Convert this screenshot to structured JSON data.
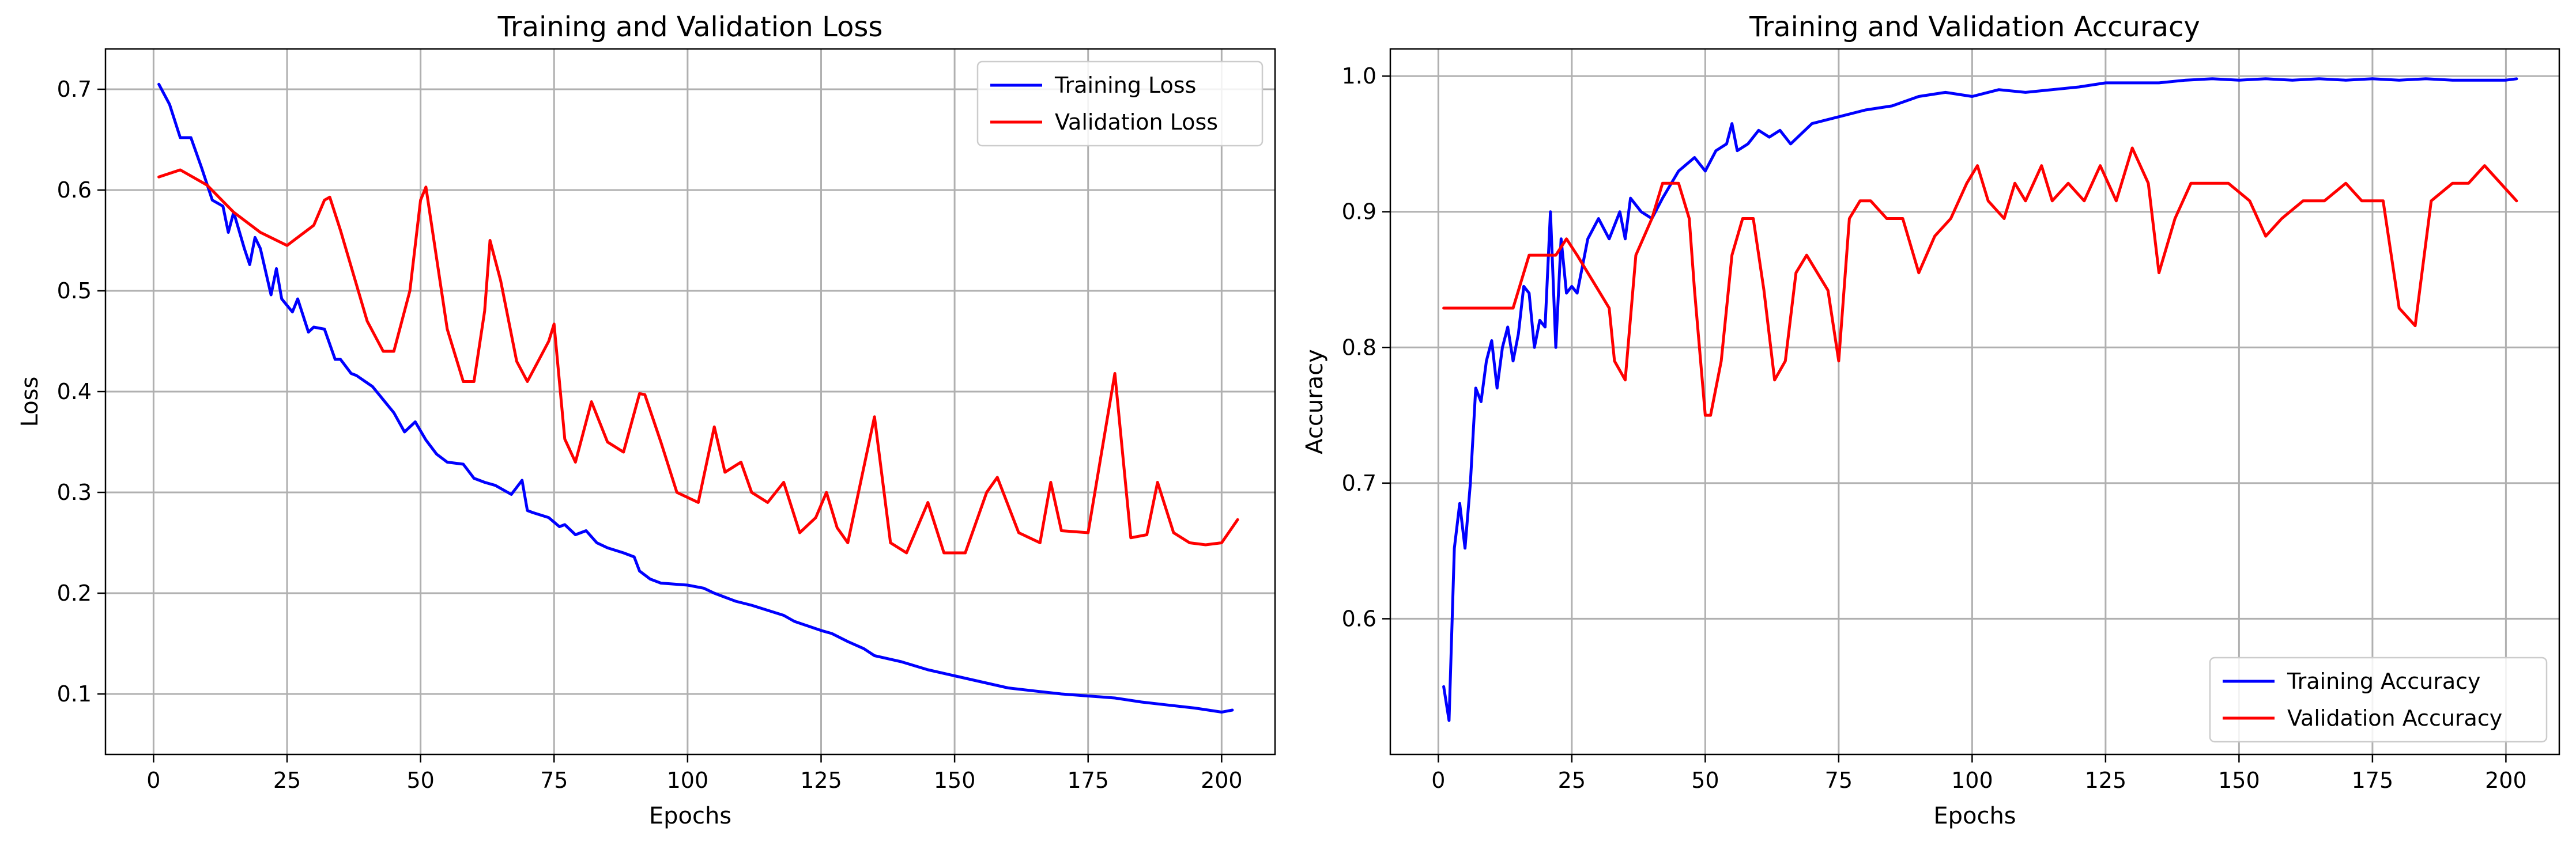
{
  "chart_data": [
    {
      "type": "line",
      "title": "Training and Validation Loss",
      "xlabel": "Epochs",
      "ylabel": "Loss",
      "xlim": [
        -9,
        210
      ],
      "ylim": [
        0.04,
        0.74
      ],
      "xticks": [
        0,
        25,
        50,
        75,
        100,
        125,
        150,
        175,
        200
      ],
      "yticks": [
        0.1,
        0.2,
        0.3,
        0.4,
        0.5,
        0.6,
        0.7
      ],
      "grid": true,
      "legend_position": "top-right",
      "series": [
        {
          "name": "Training Loss",
          "color": "#0000ff",
          "x": [
            1,
            3,
            5,
            7,
            9,
            11,
            13,
            14,
            15,
            17,
            18,
            19,
            20,
            22,
            23,
            24,
            26,
            27,
            29,
            30,
            32,
            34,
            35,
            37,
            38,
            41,
            43,
            45,
            47,
            49,
            51,
            53,
            55,
            58,
            60,
            62,
            64,
            67,
            69,
            70,
            71,
            74,
            76,
            77,
            79,
            81,
            83,
            85,
            88,
            90,
            91,
            93,
            95,
            100,
            103,
            105,
            107,
            109,
            112,
            115,
            118,
            120,
            125,
            127,
            130,
            133,
            135,
            140,
            145,
            150,
            155,
            160,
            165,
            170,
            175,
            180,
            185,
            190,
            195,
            200,
            201,
            202
          ],
          "y": [
            0.705,
            0.685,
            0.652,
            0.652,
            0.622,
            0.59,
            0.584,
            0.558,
            0.578,
            0.542,
            0.526,
            0.553,
            0.542,
            0.496,
            0.522,
            0.492,
            0.479,
            0.492,
            0.459,
            0.464,
            0.462,
            0.432,
            0.432,
            0.418,
            0.416,
            0.405,
            0.392,
            0.379,
            0.36,
            0.37,
            0.352,
            0.338,
            0.33,
            0.328,
            0.314,
            0.31,
            0.307,
            0.298,
            0.312,
            0.282,
            0.28,
            0.275,
            0.266,
            0.268,
            0.258,
            0.262,
            0.25,
            0.245,
            0.24,
            0.236,
            0.222,
            0.214,
            0.21,
            0.208,
            0.205,
            0.2,
            0.196,
            0.192,
            0.188,
            0.183,
            0.178,
            0.172,
            0.163,
            0.16,
            0.152,
            0.145,
            0.138,
            0.132,
            0.124,
            0.118,
            0.112,
            0.106,
            0.103,
            0.1,
            0.098,
            0.096,
            0.092,
            0.089,
            0.086,
            0.082,
            0.083,
            0.084
          ]
        },
        {
          "name": "Validation Loss",
          "color": "#ff0000",
          "x": [
            1,
            5,
            10,
            15,
            20,
            25,
            30,
            32,
            33,
            35,
            40,
            43,
            45,
            48,
            50,
            51,
            55,
            58,
            60,
            62,
            63,
            65,
            68,
            70,
            72,
            74,
            75,
            77,
            79,
            82,
            85,
            88,
            91,
            92,
            95,
            98,
            102,
            105,
            107,
            110,
            112,
            115,
            118,
            121,
            124,
            126,
            128,
            130,
            134,
            135,
            138,
            141,
            145,
            148,
            152,
            156,
            158,
            162,
            166,
            168,
            170,
            175,
            180,
            183,
            186,
            188,
            191,
            194,
            197,
            200,
            203
          ],
          "y": [
            0.613,
            0.62,
            0.605,
            0.578,
            0.558,
            0.545,
            0.565,
            0.59,
            0.593,
            0.56,
            0.47,
            0.44,
            0.44,
            0.5,
            0.59,
            0.603,
            0.462,
            0.41,
            0.41,
            0.48,
            0.55,
            0.51,
            0.43,
            0.41,
            0.43,
            0.45,
            0.467,
            0.353,
            0.33,
            0.39,
            0.35,
            0.34,
            0.398,
            0.397,
            0.35,
            0.3,
            0.29,
            0.365,
            0.32,
            0.33,
            0.3,
            0.29,
            0.31,
            0.26,
            0.275,
            0.3,
            0.265,
            0.25,
            0.35,
            0.375,
            0.25,
            0.24,
            0.29,
            0.24,
            0.24,
            0.3,
            0.315,
            0.26,
            0.25,
            0.31,
            0.262,
            0.26,
            0.418,
            0.255,
            0.258,
            0.31,
            0.26,
            0.25,
            0.248,
            0.25,
            0.273
          ]
        }
      ]
    },
    {
      "type": "line",
      "title": "Training and Validation Accuracy",
      "xlabel": "Epochs",
      "ylabel": "Accuracy",
      "xlim": [
        -9,
        210
      ],
      "ylim": [
        0.5,
        1.02
      ],
      "xticks": [
        0,
        25,
        50,
        75,
        100,
        125,
        150,
        175,
        200
      ],
      "yticks": [
        0.6,
        0.7,
        0.8,
        0.9,
        1.0
      ],
      "grid": true,
      "legend_position": "bottom-right",
      "series": [
        {
          "name": "Training Accuracy",
          "color": "#0000ff",
          "x": [
            1,
            2,
            3,
            4,
            5,
            6,
            7,
            8,
            9,
            10,
            11,
            12,
            13,
            14,
            15,
            16,
            17,
            18,
            19,
            20,
            21,
            22,
            23,
            24,
            25,
            26,
            27,
            28,
            30,
            32,
            34,
            35,
            36,
            38,
            40,
            42,
            45,
            48,
            50,
            52,
            54,
            55,
            56,
            58,
            60,
            62,
            64,
            66,
            70,
            75,
            80,
            85,
            90,
            95,
            100,
            105,
            110,
            115,
            120,
            125,
            130,
            135,
            140,
            145,
            150,
            155,
            160,
            165,
            170,
            175,
            180,
            185,
            190,
            195,
            200,
            202
          ],
          "y": [
            0.55,
            0.525,
            0.652,
            0.685,
            0.652,
            0.7,
            0.77,
            0.76,
            0.79,
            0.805,
            0.77,
            0.8,
            0.815,
            0.79,
            0.81,
            0.845,
            0.84,
            0.8,
            0.82,
            0.815,
            0.9,
            0.8,
            0.88,
            0.84,
            0.845,
            0.84,
            0.86,
            0.88,
            0.895,
            0.88,
            0.9,
            0.88,
            0.91,
            0.9,
            0.895,
            0.91,
            0.93,
            0.94,
            0.93,
            0.945,
            0.95,
            0.965,
            0.945,
            0.95,
            0.96,
            0.955,
            0.96,
            0.95,
            0.965,
            0.97,
            0.975,
            0.978,
            0.985,
            0.988,
            0.985,
            0.99,
            0.988,
            0.99,
            0.992,
            0.995,
            0.995,
            0.995,
            0.997,
            0.998,
            0.997,
            0.998,
            0.997,
            0.998,
            0.997,
            0.998,
            0.997,
            0.998,
            0.997,
            0.997,
            0.997,
            0.998
          ]
        },
        {
          "name": "Validation Accuracy",
          "color": "#ff0000",
          "x": [
            1,
            5,
            10,
            14,
            17,
            20,
            22,
            24,
            26,
            28,
            30,
            32,
            33,
            35,
            37,
            40,
            42,
            45,
            47,
            48,
            50,
            51,
            53,
            55,
            57,
            59,
            61,
            63,
            65,
            67,
            69,
            71,
            73,
            75,
            77,
            79,
            81,
            84,
            87,
            90,
            93,
            96,
            99,
            101,
            103,
            106,
            108,
            110,
            113,
            115,
            118,
            121,
            124,
            127,
            130,
            133,
            135,
            138,
            141,
            145,
            148,
            152,
            155,
            158,
            162,
            166,
            170,
            173,
            177,
            180,
            183,
            186,
            190,
            193,
            196,
            199,
            202
          ],
          "y": [
            0.829,
            0.829,
            0.829,
            0.829,
            0.868,
            0.868,
            0.868,
            0.88,
            0.868,
            0.855,
            0.842,
            0.829,
            0.79,
            0.776,
            0.868,
            0.895,
            0.921,
            0.921,
            0.895,
            0.842,
            0.75,
            0.75,
            0.79,
            0.868,
            0.895,
            0.895,
            0.842,
            0.776,
            0.79,
            0.855,
            0.868,
            0.855,
            0.842,
            0.79,
            0.895,
            0.908,
            0.908,
            0.895,
            0.895,
            0.855,
            0.882,
            0.895,
            0.921,
            0.934,
            0.908,
            0.895,
            0.921,
            0.908,
            0.934,
            0.908,
            0.921,
            0.908,
            0.934,
            0.908,
            0.947,
            0.921,
            0.855,
            0.895,
            0.921,
            0.921,
            0.921,
            0.908,
            0.882,
            0.895,
            0.908,
            0.908,
            0.921,
            0.908,
            0.908,
            0.829,
            0.816,
            0.908,
            0.921,
            0.921,
            0.934,
            0.921,
            0.908
          ]
        }
      ]
    }
  ]
}
